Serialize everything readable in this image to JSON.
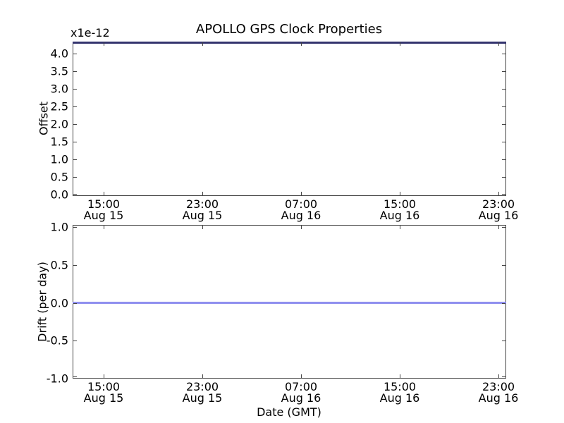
{
  "title": "APOLLO GPS Clock Properties",
  "top_plot": {
    "scale_label": "x1e-12",
    "ylabel": "Offset",
    "yticks": [
      "4.0",
      "3.5",
      "3.0",
      "2.5",
      "2.0",
      "1.5",
      "1.0",
      "0.5",
      "0.0"
    ],
    "xticks": [
      {
        "time": "15:00",
        "date": "Aug 15"
      },
      {
        "time": "23:00",
        "date": "Aug 15"
      },
      {
        "time": "07:00",
        "date": "Aug 16"
      },
      {
        "time": "15:00",
        "date": "Aug 16"
      },
      {
        "time": "23:00",
        "date": "Aug 16"
      }
    ]
  },
  "bottom_plot": {
    "ylabel": "Drift (per day)",
    "xlabel": "Date (GMT)",
    "yticks": [
      "1.0",
      "0.5",
      "0.0",
      "-0.5",
      "-1.0"
    ],
    "xticks": [
      {
        "time": "15:00",
        "date": "Aug 15"
      },
      {
        "time": "23:00",
        "date": "Aug 15"
      },
      {
        "time": "07:00",
        "date": "Aug 16"
      },
      {
        "time": "15:00",
        "date": "Aug 16"
      },
      {
        "time": "23:00",
        "date": "Aug 16"
      }
    ]
  },
  "colors": {
    "offset_line": "#34346e",
    "drift_line": "#8f8fef",
    "spine": "#444444",
    "text": "#000000",
    "background": "#ffffff"
  },
  "chart_data": [
    {
      "type": "line",
      "title": "APOLLO GPS Clock Properties",
      "subplot": "top",
      "ylabel": "Offset",
      "y_scale_factor": "x1e-12",
      "x": [
        "Aug 15 15:00",
        "Aug 15 23:00",
        "Aug 16 07:00",
        "Aug 16 15:00",
        "Aug 16 23:00"
      ],
      "series": [
        {
          "name": "offset",
          "values": [
            4.25,
            4.25,
            4.25,
            4.25,
            4.25
          ],
          "color": "#34346e",
          "note": "constant line clipped along top axis edge"
        }
      ],
      "ylim": [
        0.0,
        4.25
      ],
      "yticks": [
        0.0,
        0.5,
        1.0,
        1.5,
        2.0,
        2.5,
        3.0,
        3.5,
        4.0
      ],
      "grid": false,
      "legend": false
    },
    {
      "type": "line",
      "subplot": "bottom",
      "ylabel": "Drift (per day)",
      "xlabel": "Date (GMT)",
      "x": [
        "Aug 15 15:00",
        "Aug 15 23:00",
        "Aug 16 07:00",
        "Aug 16 15:00",
        "Aug 16 23:00"
      ],
      "series": [
        {
          "name": "drift",
          "values": [
            0.0,
            0.0,
            0.0,
            0.0,
            0.0
          ],
          "color": "#8f8fef"
        }
      ],
      "ylim": [
        -1.0,
        1.0
      ],
      "yticks": [
        -1.0,
        -0.5,
        0.0,
        0.5,
        1.0
      ],
      "grid": false,
      "legend": false
    }
  ]
}
